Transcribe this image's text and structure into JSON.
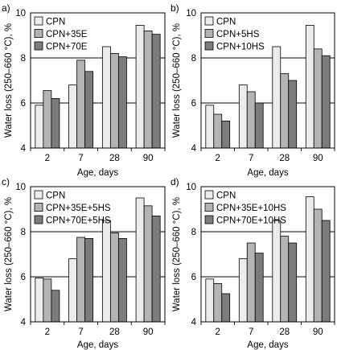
{
  "colors": {
    "series": [
      "#ececec",
      "#b4b4b4",
      "#7c7c7c"
    ],
    "stroke": "#000000"
  },
  "chart_data": [
    {
      "panel": "a)",
      "type": "bar",
      "categories": [
        "2",
        "7",
        "28",
        "90"
      ],
      "series": [
        {
          "name": "CPN",
          "values": [
            5.9,
            6.8,
            8.5,
            9.45
          ]
        },
        {
          "name": "CPN+35E",
          "values": [
            6.55,
            7.9,
            8.2,
            9.2
          ]
        },
        {
          "name": "CPN+70E",
          "values": [
            6.2,
            7.4,
            8.05,
            9.05
          ]
        }
      ],
      "xlabel": "Age, days",
      "ylabel": "Water loss (250–660 °C), %",
      "ylim": [
        4,
        10
      ],
      "yticks": [
        4,
        6,
        8,
        10
      ],
      "grid": "horizontal",
      "legend_position": "top-left"
    },
    {
      "panel": "b)",
      "type": "bar",
      "categories": [
        "2",
        "7",
        "28",
        "90"
      ],
      "series": [
        {
          "name": "CPN",
          "values": [
            5.9,
            6.8,
            8.5,
            9.45
          ]
        },
        {
          "name": "CPN+5HS",
          "values": [
            5.5,
            6.5,
            7.3,
            8.4
          ]
        },
        {
          "name": "CPN+10HS",
          "values": [
            5.2,
            6.0,
            7.0,
            8.1
          ]
        }
      ],
      "xlabel": "Age, days",
      "ylabel": "Water loss (250–660 °C), %",
      "ylim": [
        4,
        10
      ],
      "yticks": [
        4,
        6,
        8,
        10
      ],
      "grid": "horizontal",
      "legend_position": "top-left"
    },
    {
      "panel": "c)",
      "type": "bar",
      "categories": [
        "2",
        "7",
        "28",
        "90"
      ],
      "series": [
        {
          "name": "CPN",
          "values": [
            5.95,
            6.8,
            8.5,
            9.5
          ]
        },
        {
          "name": "CPN+35E+5HS",
          "values": [
            5.9,
            7.75,
            7.95,
            9.15
          ]
        },
        {
          "name": "CPN+70E+5HS",
          "values": [
            5.4,
            7.7,
            7.7,
            8.7
          ]
        }
      ],
      "xlabel": "Age, days",
      "ylabel": "Water loss (250–660 °C), %",
      "ylim": [
        4,
        10
      ],
      "yticks": [
        4,
        6,
        8,
        10
      ],
      "grid": "horizontal",
      "legend_position": "top-left"
    },
    {
      "panel": "d)",
      "type": "bar",
      "categories": [
        "2",
        "7",
        "28",
        "90"
      ],
      "series": [
        {
          "name": "CPN",
          "values": [
            5.9,
            6.8,
            8.5,
            9.55
          ]
        },
        {
          "name": "CPN+35E+10HS",
          "values": [
            5.7,
            7.5,
            7.8,
            9.0
          ]
        },
        {
          "name": "CPN+70E+10HS",
          "values": [
            5.25,
            7.05,
            7.5,
            8.5
          ]
        }
      ],
      "xlabel": "Age, days",
      "ylabel": "Water loss (250–660 °C), %",
      "ylim": [
        4,
        10
      ],
      "yticks": [
        4,
        6,
        8,
        10
      ],
      "grid": "horizontal",
      "legend_position": "top-left"
    }
  ]
}
